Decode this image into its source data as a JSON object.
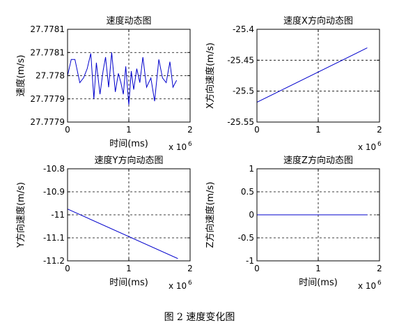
{
  "figure_caption": "图 2  速度变化图",
  "chart_data": [
    {
      "type": "line",
      "title": "速度动态图",
      "xlabel": "时间(ms)",
      "ylabel": "速度(m/s)",
      "x_exponent_label": "x 10",
      "x_exponent_power": "6",
      "xlim": [
        0,
        2
      ],
      "ylim": [
        27.7779,
        27.7781
      ],
      "xticks": [
        0,
        1,
        2
      ],
      "xtick_labels": [
        "0",
        "1",
        "2"
      ],
      "yticks": [
        27.7779,
        27.77795,
        27.778,
        27.77805,
        27.7781
      ],
      "ytick_labels": [
        "27.7779",
        "27.7779",
        "27.778",
        "27.7781",
        "27.7781"
      ],
      "grid": true,
      "color": "#0000cc",
      "series": [
        {
          "x": [
            0.0,
            0.06,
            0.12,
            0.2,
            0.26,
            0.32,
            0.38,
            0.43,
            0.47,
            0.53,
            0.58,
            0.62,
            0.67,
            0.72,
            0.78,
            0.83,
            0.87,
            0.91,
            0.95,
            1.0,
            1.04,
            1.08,
            1.13,
            1.18,
            1.23,
            1.29,
            1.36,
            1.42,
            1.49,
            1.55,
            1.61,
            1.67,
            1.72,
            1.78
          ],
          "y": [
            27.778,
            27.778035,
            27.778035,
            27.777985,
            27.777995,
            27.778015,
            27.778048,
            27.77795,
            27.778028,
            27.77796,
            27.77801,
            27.77804,
            27.777975,
            27.77805,
            27.777965,
            27.778005,
            27.777985,
            27.77796,
            27.77802,
            27.777937,
            27.77801,
            27.77797,
            27.778015,
            27.777985,
            27.77804,
            27.777975,
            27.777995,
            27.777945,
            27.778035,
            27.777995,
            27.777985,
            27.77803,
            27.777975,
            27.77799
          ]
        }
      ]
    },
    {
      "type": "line",
      "title": "速度X方向动态图",
      "xlabel": "",
      "ylabel": "X方向速度(m/s)",
      "x_exponent_label": "x 10",
      "x_exponent_power": "6",
      "xlim": [
        0,
        2
      ],
      "ylim": [
        -25.55,
        -25.4
      ],
      "xticks": [
        0,
        1,
        2
      ],
      "xtick_labels": [
        "0",
        "1",
        "2"
      ],
      "yticks": [
        -25.55,
        -25.5,
        -25.45,
        -25.4
      ],
      "ytick_labels": [
        "-25.55",
        "-25.5",
        "-25.45",
        "-25.4"
      ],
      "grid": true,
      "color": "#0000cc",
      "series": [
        {
          "x": [
            0,
            1.8
          ],
          "y": [
            -25.518,
            -25.43
          ]
        }
      ]
    },
    {
      "type": "line",
      "title": "速度Y方向动态图",
      "xlabel": "时间(ms)",
      "ylabel": "Y方向速度(m/s)",
      "x_exponent_label": "x 10",
      "x_exponent_power": "6",
      "xlim": [
        0,
        2
      ],
      "ylim": [
        -11.2,
        -10.8
      ],
      "xticks": [
        0,
        1,
        2
      ],
      "xtick_labels": [
        "0",
        "1",
        "2"
      ],
      "yticks": [
        -11.2,
        -11.1,
        -11.0,
        -10.9,
        -10.8
      ],
      "ytick_labels": [
        "-11.2",
        "-11.1",
        "-11",
        "-10.9",
        "-10.8"
      ],
      "grid": true,
      "color": "#0000cc",
      "series": [
        {
          "x": [
            0,
            1.8
          ],
          "y": [
            -10.975,
            -11.19
          ]
        }
      ]
    },
    {
      "type": "line",
      "title": "速度Z方向动态图",
      "xlabel": "时间(ms)",
      "ylabel": "Z方向速度(m/s)",
      "x_exponent_label": "x 10",
      "x_exponent_power": "6",
      "xlim": [
        0,
        2
      ],
      "ylim": [
        -1,
        1
      ],
      "xticks": [
        0,
        1,
        2
      ],
      "xtick_labels": [
        "0",
        "1",
        "2"
      ],
      "yticks": [
        -1,
        -0.5,
        0,
        0.5,
        1
      ],
      "ytick_labels": [
        "-1",
        "-0.5",
        "0",
        "0.5",
        "1"
      ],
      "grid": true,
      "color": "#0000cc",
      "series": [
        {
          "x": [
            0,
            1.8
          ],
          "y": [
            0,
            0
          ]
        }
      ]
    }
  ]
}
